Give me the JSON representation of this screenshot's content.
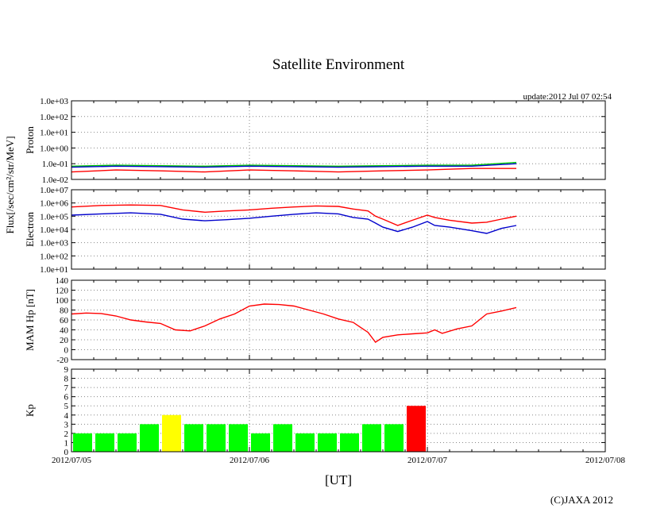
{
  "chart_data": [
    {
      "type": "line",
      "panel": "proton",
      "title": "Satellite Environment",
      "update_text": "update:2012 Jul 07 02:54",
      "ylabel": "Proton",
      "shared_ylabel": "Flux[/sec/cm²/str/MeV]",
      "yscale": "log",
      "ylim": [
        0.01,
        1000
      ],
      "yticks": [
        "1.0e-02",
        "1.0e-01",
        "1.0e+00",
        "1.0e+01",
        "1.0e+02",
        "1.0e+03"
      ],
      "xlim": [
        "2012-07-05 00:00",
        "2012-07-08 00:00"
      ],
      "grid": true,
      "series": [
        {
          "color": "#00cc00",
          "x": [
            0,
            6,
            12,
            18,
            24,
            30,
            36,
            42,
            48,
            54,
            60
          ],
          "y": [
            0.07,
            0.08,
            0.075,
            0.07,
            0.08,
            0.075,
            0.07,
            0.075,
            0.08,
            0.08,
            0.12
          ]
        },
        {
          "color": "#0000cc",
          "x": [
            0,
            6,
            12,
            18,
            24,
            30,
            36,
            42,
            48,
            54,
            60
          ],
          "y": [
            0.06,
            0.07,
            0.065,
            0.06,
            0.07,
            0.065,
            0.06,
            0.065,
            0.07,
            0.07,
            0.1
          ]
        },
        {
          "color": "#ff0000",
          "x": [
            0,
            6,
            12,
            18,
            24,
            30,
            36,
            42,
            48,
            54,
            60
          ],
          "y": [
            0.03,
            0.04,
            0.035,
            0.03,
            0.04,
            0.035,
            0.03,
            0.035,
            0.04,
            0.05,
            0.05
          ]
        }
      ]
    },
    {
      "type": "line",
      "panel": "electron",
      "ylabel": "Electron",
      "yscale": "log",
      "ylim": [
        10,
        10000000
      ],
      "yticks": [
        "1.0e+01",
        "1.0e+02",
        "1.0e+03",
        "1.0e+04",
        "1.0e+05",
        "1.0e+06",
        "1.0e+07"
      ],
      "grid": true,
      "series": [
        {
          "color": "#ff0000",
          "x": [
            0,
            4,
            8,
            12,
            15,
            18,
            21,
            24,
            27,
            30,
            33,
            36,
            38,
            40,
            41,
            42,
            44,
            46,
            48,
            49,
            51,
            54,
            56,
            58,
            60
          ],
          "y": [
            500000,
            650000,
            700000,
            650000,
            300000,
            200000,
            250000,
            300000,
            400000,
            500000,
            600000,
            550000,
            350000,
            250000,
            100000,
            60000,
            20000,
            50000,
            120000,
            80000,
            50000,
            30000,
            35000,
            60000,
            100000
          ]
        },
        {
          "color": "#0000cc",
          "x": [
            0,
            4,
            8,
            12,
            15,
            18,
            21,
            24,
            27,
            30,
            33,
            36,
            38,
            40,
            41,
            42,
            44,
            46,
            48,
            49,
            51,
            54,
            56,
            58,
            60
          ],
          "y": [
            120000,
            150000,
            180000,
            140000,
            60000,
            45000,
            55000,
            70000,
            100000,
            140000,
            180000,
            150000,
            80000,
            60000,
            30000,
            15000,
            7000,
            15000,
            40000,
            20000,
            15000,
            8000,
            5000,
            12000,
            20000
          ]
        }
      ]
    },
    {
      "type": "line",
      "panel": "mam",
      "ylabel": "MAM Hp [nT]",
      "ylim": [
        -20,
        140
      ],
      "yticks": [
        "-20",
        "0",
        "20",
        "40",
        "60",
        "80",
        "100",
        "120",
        "140"
      ],
      "grid": true,
      "series": [
        {
          "color": "#ff0000",
          "x": [
            0,
            2,
            4,
            6,
            8,
            10,
            12,
            14,
            16,
            18,
            20,
            22,
            24,
            26,
            28,
            30,
            32,
            34,
            36,
            38,
            39,
            40,
            41,
            42,
            44,
            46,
            48,
            49,
            50,
            52,
            54,
            56,
            58,
            60
          ],
          "y": [
            72,
            74,
            73,
            68,
            60,
            56,
            53,
            40,
            38,
            48,
            62,
            72,
            88,
            92,
            91,
            88,
            80,
            72,
            62,
            55,
            45,
            35,
            15,
            25,
            30,
            32,
            34,
            40,
            33,
            42,
            48,
            72,
            78,
            85
          ]
        }
      ]
    },
    {
      "type": "bar",
      "panel": "kp",
      "ylabel": "Kp",
      "ylim": [
        0,
        9
      ],
      "yticks": [
        "0",
        "1",
        "2",
        "3",
        "4",
        "5",
        "6",
        "7",
        "8",
        "9"
      ],
      "grid": true,
      "bin_hours": 3,
      "values": [
        2,
        2,
        2,
        3,
        4,
        3,
        3,
        3,
        2,
        3,
        2,
        2,
        2,
        3,
        3,
        5
      ],
      "colors": [
        "#00ff00",
        "#00ff00",
        "#00ff00",
        "#00ff00",
        "#ffff00",
        "#00ff00",
        "#00ff00",
        "#00ff00",
        "#00ff00",
        "#00ff00",
        "#00ff00",
        "#00ff00",
        "#00ff00",
        "#00ff00",
        "#00ff00",
        "#ff0000"
      ],
      "xlabel": "[UT]",
      "xticks": [
        "2012/07/05",
        "2012/07/06",
        "2012/07/07",
        "2012/07/08"
      ]
    }
  ],
  "footer": {
    "copyright": "(C)JAXA 2012"
  }
}
